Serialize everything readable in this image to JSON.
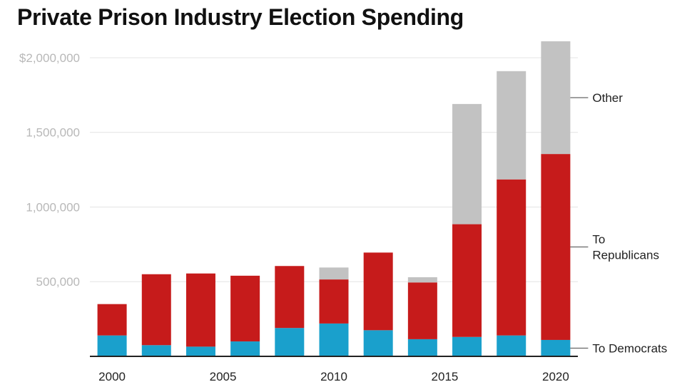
{
  "chart_data": {
    "type": "bar",
    "stacked": true,
    "title": "Private Prison Industry Election Spending",
    "xlabel": "",
    "ylabel": "",
    "x": [
      2000,
      2002,
      2004,
      2006,
      2008,
      2010,
      2012,
      2014,
      2016,
      2018,
      2020
    ],
    "xlim": [
      1999,
      2021
    ],
    "x_ticks": [
      2000,
      2005,
      2010,
      2015,
      2020
    ],
    "x_tick_labels": [
      "2000",
      "2005",
      "2010",
      "2015",
      "2020"
    ],
    "ylim": [
      0,
      2100000
    ],
    "y_ticks": [
      500000,
      1000000,
      1500000,
      2000000
    ],
    "y_tick_labels": [
      "500,000",
      "1,000,000",
      "1,500,000",
      "$2,000,000"
    ],
    "grid": true,
    "legend_position": "right",
    "series": [
      {
        "name": "To Democrats",
        "color": "#1aa0cc",
        "values": [
          140000,
          75000,
          65000,
          100000,
          190000,
          220000,
          175000,
          115000,
          130000,
          140000,
          110000
        ]
      },
      {
        "name": "To Republicans",
        "color": "#c61b1b",
        "values": [
          210000,
          475000,
          490000,
          440000,
          415000,
          295000,
          520000,
          380000,
          755000,
          1045000,
          1245000
        ]
      },
      {
        "name": "Other",
        "color": "#c2c2c2",
        "values": [
          0,
          0,
          0,
          0,
          0,
          80000,
          0,
          35000,
          805000,
          725000,
          755000
        ]
      }
    ]
  }
}
